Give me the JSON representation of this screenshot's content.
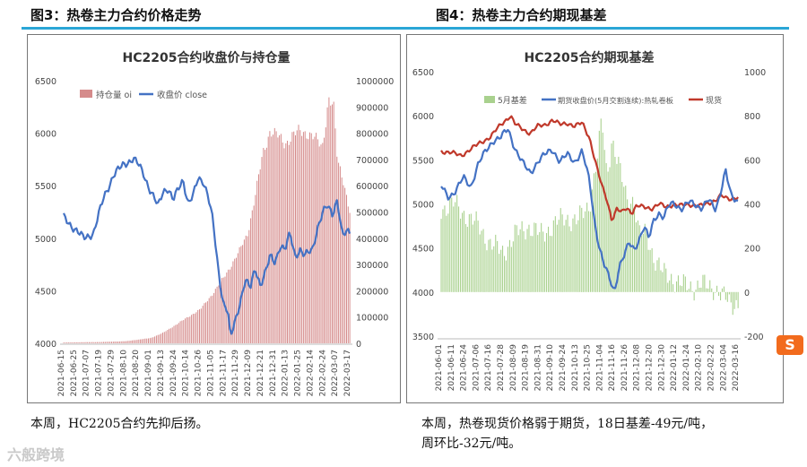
{
  "figure_left": {
    "title": "图3：热卷主力合约价格走势"
  },
  "figure_right": {
    "title": "图4：热卷主力合约期现基差"
  },
  "caption_left": "本周，HC2205合约先抑后扬。",
  "caption_right_line1": "本周，热卷现货价格弱于期货，18日基差-49元/吨，",
  "caption_right_line2": "周环比-32元/吨。",
  "watermark": "六般跨境",
  "side_icon": {
    "name": "sogou-s-icon",
    "glyph": "S"
  },
  "colors": {
    "accent_rule": "#2aa6d6",
    "bar_red": "#d58b8b",
    "line_blue": "#4472c4",
    "line_red": "#c0392b",
    "bar_green": "#a9d18e"
  },
  "chart_data": [
    {
      "type": "bar+line",
      "title": "HC2205合约收盘价与持仓量",
      "legend": [
        "持仓量 oi",
        "收盘价 close"
      ],
      "legend_position": "top-left",
      "y_left": {
        "min": 4000,
        "max": 6500,
        "ticks": [
          4000,
          4500,
          5000,
          5500,
          6000,
          6500
        ]
      },
      "y_right": {
        "min": 0,
        "max": 1000000,
        "ticks": [
          0,
          100000,
          200000,
          300000,
          400000,
          500000,
          600000,
          700000,
          800000,
          900000,
          1000000
        ]
      },
      "x_tick_labels": [
        "2021-06-15",
        "2021-06-25",
        "2021-07-07",
        "2021-07-19",
        "2021-07-29",
        "2021-08-10",
        "2021-08-20",
        "2021-09-01",
        "2021-09-13",
        "2021-09-24",
        "2021-10-14",
        "2021-10-26",
        "2021-11-05",
        "2021-11-17",
        "2021-11-29",
        "2021-12-09",
        "2021-12-21",
        "2021-12-31",
        "2022-01-13",
        "2022-01-25",
        "2022-02-14",
        "2022-02-24",
        "2022-03-07",
        "2022-03-17"
      ],
      "close_keyframes": [
        [
          0,
          5200
        ],
        [
          0.8,
          5100
        ],
        [
          1.6,
          5000
        ],
        [
          2.4,
          5050
        ],
        [
          3.2,
          5380
        ],
        [
          4,
          5600
        ],
        [
          4.8,
          5700
        ],
        [
          5.6,
          5760
        ],
        [
          6,
          5700
        ],
        [
          6.4,
          5620
        ],
        [
          6.8,
          5500
        ],
        [
          7.2,
          5400
        ],
        [
          7.6,
          5300
        ],
        [
          8,
          5450
        ],
        [
          8.4,
          5480
        ],
        [
          8.8,
          5360
        ],
        [
          9.2,
          5460
        ],
        [
          9.6,
          5560
        ],
        [
          10,
          5340
        ],
        [
          10.4,
          5400
        ],
        [
          10.8,
          5560
        ],
        [
          11.2,
          5550
        ],
        [
          11.6,
          5420
        ],
        [
          12,
          5160
        ],
        [
          12.4,
          4720
        ],
        [
          12.8,
          4400
        ],
        [
          13.2,
          4320
        ],
        [
          13.4,
          4050
        ],
        [
          13.8,
          4200
        ],
        [
          14.2,
          4400
        ],
        [
          14.6,
          4620
        ],
        [
          15,
          4520
        ],
        [
          15.4,
          4700
        ],
        [
          15.8,
          4560
        ],
        [
          16.2,
          4680
        ],
        [
          16.6,
          4820
        ],
        [
          17,
          4760
        ],
        [
          17.4,
          4940
        ],
        [
          17.8,
          4900
        ],
        [
          18.2,
          5040
        ],
        [
          18.6,
          4820
        ],
        [
          19,
          4900
        ],
        [
          19.4,
          4840
        ],
        [
          20,
          4880
        ],
        [
          20.4,
          5100
        ],
        [
          20.8,
          5250
        ],
        [
          21.2,
          5300
        ],
        [
          21.6,
          5220
        ],
        [
          22,
          5380
        ],
        [
          22.4,
          5030
        ],
        [
          22.8,
          5050
        ]
      ],
      "oi_keyframes": [
        [
          0,
          3000
        ],
        [
          3,
          5000
        ],
        [
          5,
          8000
        ],
        [
          7,
          20000
        ],
        [
          8,
          40000
        ],
        [
          9,
          70000
        ],
        [
          10,
          100000
        ],
        [
          11,
          130000
        ],
        [
          12,
          190000
        ],
        [
          13,
          260000
        ],
        [
          14,
          340000
        ],
        [
          14.8,
          420000
        ],
        [
          15.4,
          560000
        ],
        [
          16,
          720000
        ],
        [
          16.6,
          810000
        ],
        [
          17.2,
          790000
        ],
        [
          17.8,
          760000
        ],
        [
          18.4,
          790000
        ],
        [
          19,
          810000
        ],
        [
          19.6,
          800000
        ],
        [
          20.2,
          780000
        ],
        [
          20.8,
          750000
        ],
        [
          21.3,
          930000
        ],
        [
          21.7,
          900000
        ],
        [
          22,
          700000
        ],
        [
          22.5,
          620000
        ],
        [
          23,
          500000
        ]
      ]
    },
    {
      "type": "bar+line",
      "title": "HC2205合约期现基差",
      "legend": [
        "5月基差",
        "期货收盘价(5月交割连续):热轧卷板",
        "现货"
      ],
      "legend_position": "top",
      "y_left": {
        "min": 3500,
        "max": 6500,
        "ticks": [
          3500,
          4000,
          4500,
          5000,
          5500,
          6000,
          6500
        ]
      },
      "y_right": {
        "min": -200,
        "max": 1000,
        "ticks": [
          -200,
          0,
          200,
          400,
          600,
          800,
          1000
        ]
      },
      "x_tick_labels": [
        "2021-06-01",
        "2021-06-11",
        "2021-06-24",
        "2021-07-06",
        "2021-07-16",
        "2021-07-28",
        "2021-08-09",
        "2021-08-19",
        "2021-08-31",
        "2021-09-10",
        "2021-09-24",
        "2021-10-13",
        "2021-10-25",
        "2021-11-04",
        "2021-11-16",
        "2021-11-26",
        "2021-12-08",
        "2021-12-20",
        "2021-12-30",
        "2022-01-12",
        "2022-01-24",
        "2022-02-10",
        "2022-02-22",
        "2022-03-04",
        "2022-03-16"
      ],
      "futures_keyframes": [
        [
          0,
          5200
        ],
        [
          0.6,
          5080
        ],
        [
          1.2,
          5150
        ],
        [
          1.8,
          5300
        ],
        [
          2.4,
          5200
        ],
        [
          3,
          5450
        ],
        [
          3.6,
          5600
        ],
        [
          4.2,
          5720
        ],
        [
          4.8,
          5750
        ],
        [
          5.4,
          5850
        ],
        [
          6,
          5620
        ],
        [
          6.6,
          5460
        ],
        [
          7.2,
          5350
        ],
        [
          7.8,
          5480
        ],
        [
          8.4,
          5560
        ],
        [
          9,
          5620
        ],
        [
          9.6,
          5480
        ],
        [
          10.2,
          5560
        ],
        [
          10.8,
          5480
        ],
        [
          11.4,
          5600
        ],
        [
          12,
          5250
        ],
        [
          12.4,
          4800
        ],
        [
          12.8,
          4500
        ],
        [
          13.2,
          4300
        ],
        [
          13.6,
          4150
        ],
        [
          14,
          4000
        ],
        [
          14.4,
          4300
        ],
        [
          14.8,
          4420
        ],
        [
          15.2,
          4550
        ],
        [
          15.6,
          4480
        ],
        [
          16,
          4600
        ],
        [
          16.4,
          4750
        ],
        [
          16.8,
          4600
        ],
        [
          17.2,
          4820
        ],
        [
          17.6,
          4900
        ],
        [
          18,
          4850
        ],
        [
          18.4,
          4980
        ],
        [
          18.8,
          5000
        ],
        [
          19.4,
          4950
        ],
        [
          20,
          5020
        ],
        [
          20.6,
          4980
        ],
        [
          21,
          4960
        ],
        [
          21.6,
          5050
        ],
        [
          22.2,
          4920
        ],
        [
          22.6,
          5150
        ],
        [
          23,
          5400
        ],
        [
          23.4,
          5100
        ],
        [
          23.8,
          5020
        ]
      ],
      "spot_keyframes": [
        [
          0,
          5600
        ],
        [
          0.8,
          5580
        ],
        [
          1.6,
          5550
        ],
        [
          2.4,
          5620
        ],
        [
          3.2,
          5700
        ],
        [
          4,
          5760
        ],
        [
          4.8,
          5900
        ],
        [
          5.6,
          6000
        ],
        [
          6,
          5900
        ],
        [
          6.6,
          5850
        ],
        [
          7.2,
          5800
        ],
        [
          7.8,
          5880
        ],
        [
          8.4,
          5900
        ],
        [
          9,
          5950
        ],
        [
          9.6,
          5900
        ],
        [
          10.2,
          5920
        ],
        [
          10.8,
          5880
        ],
        [
          11.4,
          5920
        ],
        [
          12,
          5750
        ],
        [
          12.6,
          5400
        ],
        [
          13,
          5200
        ],
        [
          13.4,
          5050
        ],
        [
          13.8,
          4820
        ],
        [
          14.2,
          4940
        ],
        [
          14.6,
          4900
        ],
        [
          15,
          4960
        ],
        [
          15.4,
          4900
        ],
        [
          15.8,
          4980
        ],
        [
          16.4,
          4960
        ],
        [
          17,
          4950
        ],
        [
          17.6,
          5000
        ],
        [
          18.2,
          4960
        ],
        [
          18.8,
          5000
        ],
        [
          19.4,
          4980
        ],
        [
          20,
          4990
        ],
        [
          20.6,
          4990
        ],
        [
          21,
          4980
        ],
        [
          21.6,
          5000
        ],
        [
          22.2,
          5050
        ],
        [
          22.6,
          5100
        ],
        [
          23,
          5060
        ],
        [
          23.4,
          5050
        ],
        [
          23.8,
          5080
        ]
      ],
      "basis_keyframes": [
        [
          0,
          380
        ],
        [
          1,
          400
        ],
        [
          2,
          350
        ],
        [
          3,
          300
        ],
        [
          4,
          220
        ],
        [
          5,
          180
        ],
        [
          6,
          260
        ],
        [
          7,
          300
        ],
        [
          8,
          260
        ],
        [
          9,
          300
        ],
        [
          10,
          340
        ],
        [
          11,
          320
        ],
        [
          12,
          400
        ],
        [
          12.6,
          600
        ],
        [
          13,
          780
        ],
        [
          13.4,
          520
        ],
        [
          13.8,
          700
        ],
        [
          14.4,
          560
        ],
        [
          15,
          420
        ],
        [
          15.6,
          420
        ],
        [
          16,
          260
        ],
        [
          16.6,
          260
        ],
        [
          17.2,
          160
        ],
        [
          18,
          80
        ],
        [
          18.8,
          60
        ],
        [
          19.6,
          30
        ],
        [
          20.4,
          20
        ],
        [
          21,
          40
        ],
        [
          21.6,
          20
        ],
        [
          22.2,
          20
        ],
        [
          22.8,
          -20
        ],
        [
          23.4,
          -60
        ],
        [
          23.8,
          -49
        ]
      ]
    }
  ]
}
